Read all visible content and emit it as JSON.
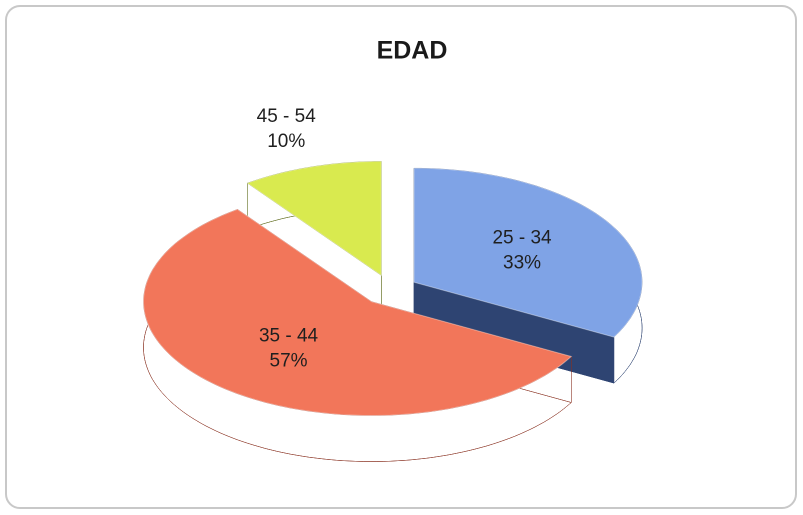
{
  "chart_data": {
    "type": "pie",
    "title": "EDAD",
    "categories": [
      "25 - 34",
      "35 - 44",
      "45 - 54"
    ],
    "values": [
      33,
      57,
      10
    ],
    "value_labels": [
      "33%",
      "57%",
      "10%"
    ],
    "colors": [
      "#7fa3e6",
      "#f2765a",
      "#d9ea4f"
    ],
    "side_colors": [
      "#2e4472",
      "#8a3222",
      "#5e6a1a"
    ],
    "three_d": true,
    "exploded": true
  }
}
